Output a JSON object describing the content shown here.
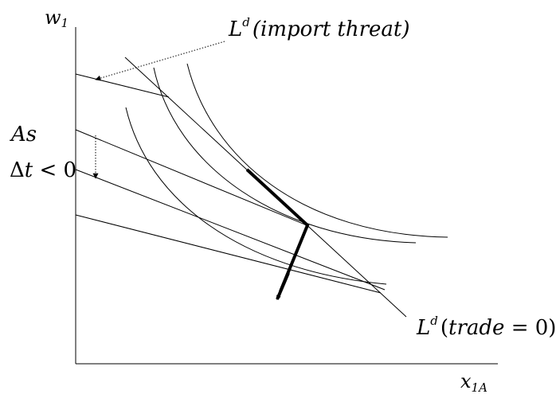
{
  "labels": {
    "y_axis": "w",
    "y_axis_sub": "1",
    "x_axis": "x",
    "x_axis_sub": "1A",
    "import_threat_L": "L",
    "import_threat_sup": "d",
    "import_threat_text": "(import  threat)",
    "trade_zero_L": "L",
    "trade_zero_sup": "d",
    "trade_zero_open": "(",
    "trade_zero_word": "trade",
    "trade_zero_eq": " = 0)",
    "as_text": "As",
    "delta_t": "Δ",
    "delta_t_var": "t",
    "delta_t_cmp": " < 0"
  }
}
